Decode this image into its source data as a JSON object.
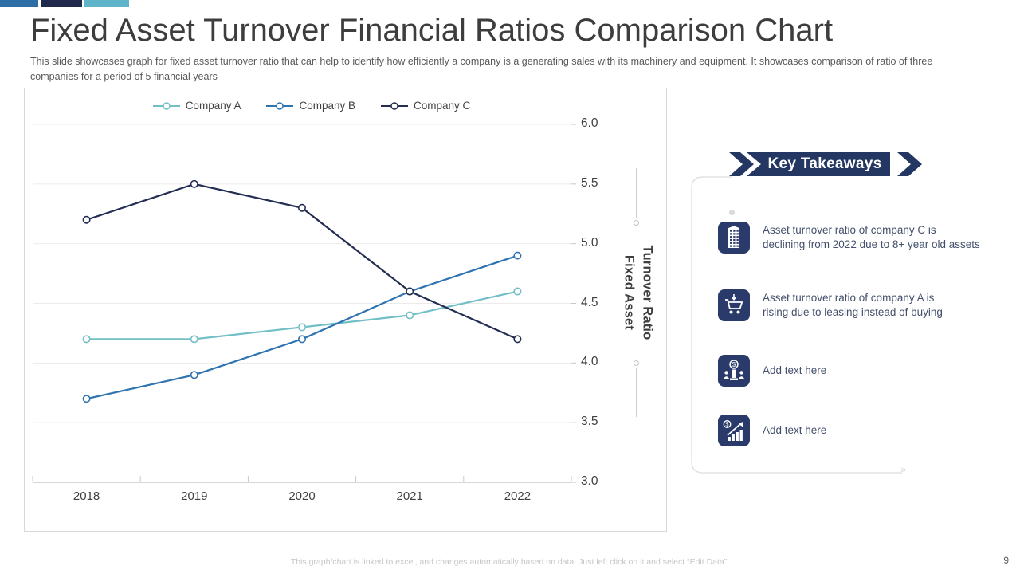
{
  "top_bar": {
    "segment_colors": [
      "#2F6DA6",
      "#20294C",
      "#5FB4C9"
    ]
  },
  "header": {
    "title": "Fixed Asset Turnover Financial Ratios Comparison Chart",
    "subtitle": "This slide showcases graph for fixed asset turnover ratio that can help to identify how efficiently a company is a generating sales with its machinery and equipment. It showcases comparison of ratio of three companies for a period of 5 financial years"
  },
  "chart_data": {
    "type": "line",
    "title": "",
    "categories": [
      "2018",
      "2019",
      "2020",
      "2021",
      "2022"
    ],
    "series": [
      {
        "name": "Company A",
        "color": "#72BFC7",
        "values": [
          4.2,
          4.2,
          4.3,
          4.4,
          4.6
        ]
      },
      {
        "name": "Company B",
        "color": "#2F74B0",
        "values": [
          3.7,
          3.9,
          4.2,
          4.6,
          4.9
        ]
      },
      {
        "name": "Company C",
        "color": "#232C52",
        "values": [
          5.2,
          5.5,
          5.3,
          4.6,
          4.2
        ]
      }
    ],
    "xlabel": "",
    "ylabel": "Fixed Asset Turnover Ratio",
    "ylabel_lines": [
      "Fixed Asset",
      "Turnover Ratio"
    ],
    "ylim": [
      3.0,
      6.0
    ],
    "ytick_step": 0.5,
    "yaxis_side": "right",
    "legend_position": "top",
    "grid": true
  },
  "key_takeaways": {
    "banner_label": "Key Takeaways",
    "banner_color": "#243763",
    "items": [
      {
        "icon": "building-icon",
        "text": "Asset turnover ratio of company C is\ndeclining from 2022 due to 8+ year old assets"
      },
      {
        "icon": "cart-icon",
        "text": "Asset turnover ratio of company A is\nrising due to leasing instead of buying"
      },
      {
        "icon": "auction-icon",
        "text": "Add text here"
      },
      {
        "icon": "growth-chart-icon",
        "text": "Add text here"
      }
    ]
  },
  "footer": {
    "note": "This graph/chart is linked to excel, and changes automatically based on data. Just left click on it and select “Edit Data”.",
    "page_number": "9"
  }
}
